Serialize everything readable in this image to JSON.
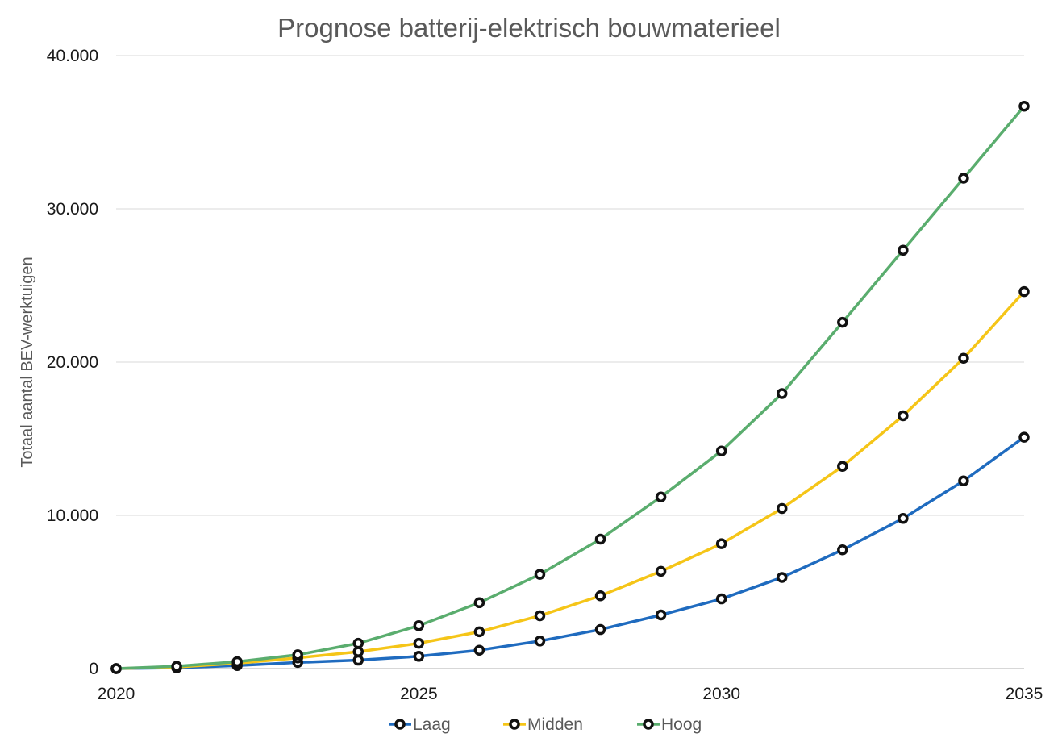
{
  "chart_data": {
    "type": "line",
    "title": "Prognose batterij-elektrisch bouwmaterieel",
    "xlabel": "",
    "ylabel": "Totaal aantal BEV-werktuigen",
    "x": [
      2020,
      2021,
      2022,
      2023,
      2024,
      2025,
      2026,
      2027,
      2028,
      2029,
      2030,
      2031,
      2032,
      2033,
      2034,
      2035
    ],
    "xlim": [
      2020,
      2035
    ],
    "ylim": [
      0,
      40000
    ],
    "x_ticks": [
      "2020",
      "2025",
      "2030",
      "2035"
    ],
    "y_ticks": [
      "0",
      "10.000",
      "20.000",
      "30.000",
      "40.000"
    ],
    "grid": true,
    "legend_position": "bottom",
    "series": [
      {
        "name": "Laag",
        "color": "#1f6bbf",
        "values": [
          0,
          50,
          200,
          400,
          550,
          800,
          1200,
          1800,
          2550,
          3500,
          4550,
          5950,
          7750,
          9800,
          12250,
          15100
        ]
      },
      {
        "name": "Midden",
        "color": "#f5c518",
        "values": [
          0,
          100,
          350,
          700,
          1100,
          1650,
          2400,
          3450,
          4750,
          6350,
          8150,
          10450,
          13200,
          16500,
          20250,
          24600
        ]
      },
      {
        "name": "Hoog",
        "color": "#5aad6e",
        "values": [
          0,
          150,
          450,
          900,
          1650,
          2800,
          4300,
          6150,
          8450,
          11200,
          14200,
          17950,
          22600,
          27300,
          32000,
          36700
        ]
      }
    ]
  }
}
